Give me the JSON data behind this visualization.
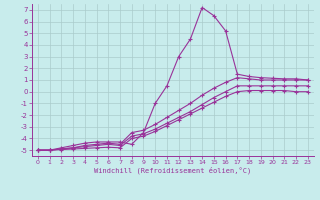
{
  "xlabel": "Windchill (Refroidissement éolien,°C)",
  "bg_color": "#c8ecec",
  "line_color": "#993399",
  "grid_color": "#aacccc",
  "axis_color": "#993399",
  "xlim": [
    -0.5,
    23.5
  ],
  "ylim": [
    -5.5,
    7.5
  ],
  "xticks": [
    0,
    1,
    2,
    3,
    4,
    5,
    6,
    7,
    8,
    9,
    10,
    11,
    12,
    13,
    14,
    15,
    16,
    17,
    18,
    19,
    20,
    21,
    22,
    23
  ],
  "yticks": [
    -5,
    -4,
    -3,
    -2,
    -1,
    0,
    1,
    2,
    3,
    4,
    5,
    6,
    7
  ],
  "series": [
    {
      "x": [
        0,
        1,
        2,
        3,
        4,
        5,
        6,
        7,
        8,
        9,
        10,
        11,
        12,
        13,
        14,
        15,
        16,
        17,
        18,
        19,
        20,
        21,
        22,
        23
      ],
      "y": [
        -5.0,
        -5.0,
        -4.8,
        -4.6,
        -4.4,
        -4.3,
        -4.3,
        -4.3,
        -4.5,
        -3.5,
        -1.0,
        0.5,
        3.0,
        4.5,
        7.2,
        6.5,
        5.2,
        1.5,
        1.3,
        1.2,
        1.15,
        1.1,
        1.1,
        1.0
      ]
    },
    {
      "x": [
        0,
        1,
        2,
        3,
        4,
        5,
        6,
        7,
        8,
        9,
        10,
        11,
        12,
        13,
        14,
        15,
        16,
        17,
        18,
        19,
        20,
        21,
        22,
        23
      ],
      "y": [
        -5.0,
        -5.0,
        -4.9,
        -4.8,
        -4.6,
        -4.5,
        -4.4,
        -4.5,
        -3.5,
        -3.3,
        -2.8,
        -2.2,
        -1.6,
        -1.0,
        -0.3,
        0.3,
        0.8,
        1.2,
        1.1,
        1.0,
        1.0,
        1.0,
        1.0,
        1.0
      ]
    },
    {
      "x": [
        0,
        1,
        2,
        3,
        4,
        5,
        6,
        7,
        8,
        9,
        10,
        11,
        12,
        13,
        14,
        15,
        16,
        17,
        18,
        19,
        20,
        21,
        22,
        23
      ],
      "y": [
        -5.0,
        -5.0,
        -4.9,
        -4.8,
        -4.7,
        -4.6,
        -4.5,
        -4.6,
        -3.8,
        -3.6,
        -3.2,
        -2.7,
        -2.2,
        -1.7,
        -1.1,
        -0.5,
        0.0,
        0.5,
        0.5,
        0.5,
        0.5,
        0.5,
        0.5,
        0.5
      ]
    },
    {
      "x": [
        0,
        1,
        2,
        3,
        4,
        5,
        6,
        7,
        8,
        9,
        10,
        11,
        12,
        13,
        14,
        15,
        16,
        17,
        18,
        19,
        20,
        21,
        22,
        23
      ],
      "y": [
        -5.0,
        -5.0,
        -4.95,
        -4.9,
        -4.85,
        -4.8,
        -4.75,
        -4.8,
        -4.0,
        -3.8,
        -3.4,
        -2.9,
        -2.4,
        -1.9,
        -1.4,
        -0.9,
        -0.4,
        0.0,
        0.1,
        0.1,
        0.1,
        0.1,
        0.0,
        0.0
      ]
    }
  ]
}
